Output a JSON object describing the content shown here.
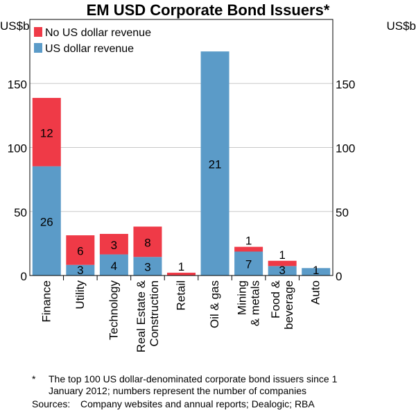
{
  "chart_data": {
    "type": "bar",
    "stacked": true,
    "title": "EM USD Corporate Bond Issuers*",
    "ylabel_left": "US$b",
    "ylabel_right": "US$b",
    "ylim": [
      0,
      200
    ],
    "yticks": [
      0,
      50,
      100,
      150
    ],
    "grid": true,
    "legend_placement": "top-left",
    "categories": [
      "Finance",
      "Utility",
      "Technology",
      "Real Estate & Construction",
      "Retail",
      "Oil & gas",
      "Mining & metals",
      "Food & beverage",
      "Auto"
    ],
    "category_lines": [
      [
        "Finance"
      ],
      [
        "Utility"
      ],
      [
        "Technology"
      ],
      [
        "Real Estate &",
        "Construction"
      ],
      [
        "Retail"
      ],
      [
        "Oil & gas"
      ],
      [
        "Mining",
        "& metals"
      ],
      [
        "Food &",
        "beverage"
      ],
      [
        "Auto"
      ]
    ],
    "series": [
      {
        "name": "US dollar revenue",
        "color": "#5b9bc8",
        "values": [
          85.3,
          8.3,
          16.5,
          14.5,
          0,
          175,
          18.7,
          7.4,
          5.8
        ],
        "labels": [
          "26",
          "3",
          "4",
          "3",
          "",
          "21",
          "7",
          "3",
          "1"
        ]
      },
      {
        "name": "No US dollar revenue",
        "color": "#ef3a47",
        "values": [
          53.4,
          23.1,
          16,
          23.7,
          2.2,
          0,
          3.7,
          4.1,
          0
        ],
        "labels": [
          "12",
          "6",
          "3",
          "8",
          "1",
          "",
          "1",
          "1",
          ""
        ]
      }
    ]
  },
  "notes": {
    "star_mark": "*",
    "star_text": "The top 100 US dollar-denominated corporate bond issuers since 1 January 2012; numbers represent the number of companies",
    "sources_label": "Sources:",
    "sources_text": "Company websites and annual reports; Dealogic; RBA"
  }
}
